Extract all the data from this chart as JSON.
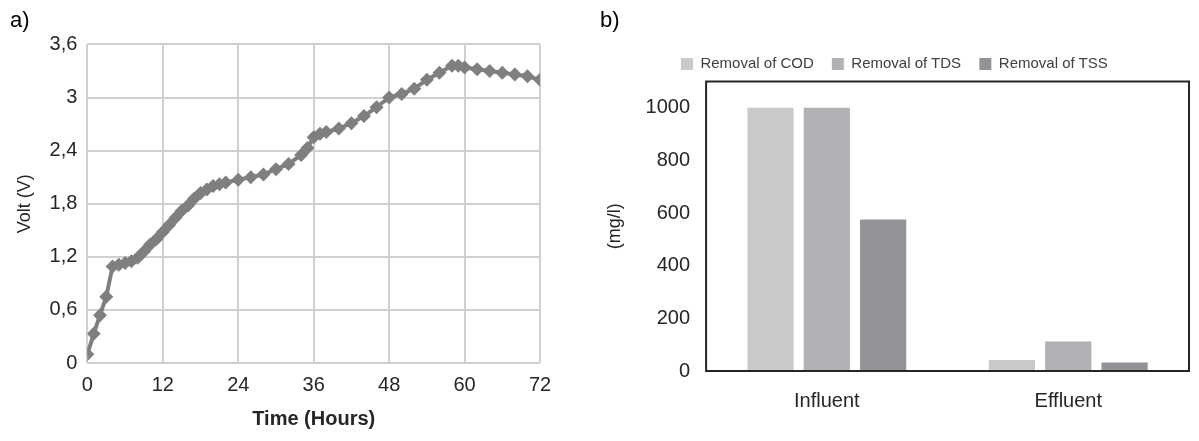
{
  "chart_data": [
    {
      "type": "line",
      "title": "a)",
      "xlabel": "Time (Hours)",
      "ylabel": "Volt (V)",
      "grid": true,
      "legend": false,
      "marker": "diamond",
      "line_style": "solid",
      "xlim": [
        0,
        72
      ],
      "xticks": [
        0,
        12,
        24,
        36,
        48,
        60,
        72
      ],
      "ylim": [
        0,
        3.6
      ],
      "yticks": [
        0,
        {
          "value": 0.6,
          "label": "0,6"
        },
        {
          "value": 1.2,
          "label": "1,2"
        },
        {
          "value": 1.8,
          "label": "1,8"
        },
        {
          "value": 2.4,
          "label": "2,4"
        },
        3,
        {
          "value": 3.6,
          "label": "3,6"
        }
      ],
      "series": [
        {
          "color": "#7f7f7f",
          "x": [
            0,
            1,
            2,
            3,
            4,
            5,
            6,
            7,
            8,
            9,
            10,
            11,
            12,
            13,
            14,
            15,
            16,
            17,
            18,
            19,
            20,
            21,
            22,
            24,
            26,
            28,
            30,
            32,
            34,
            35,
            36,
            37,
            38,
            40,
            42,
            44,
            46,
            48,
            50,
            52,
            54,
            56,
            58,
            59,
            60,
            62,
            64,
            66,
            68,
            70,
            72
          ],
          "values": [
            0.1,
            0.33,
            0.54,
            0.75,
            1.09,
            1.11,
            1.13,
            1.15,
            1.19,
            1.26,
            1.34,
            1.4,
            1.48,
            1.56,
            1.64,
            1.72,
            1.78,
            1.86,
            1.92,
            1.96,
            2.0,
            2.02,
            2.04,
            2.07,
            2.1,
            2.13,
            2.19,
            2.25,
            2.35,
            2.43,
            2.55,
            2.59,
            2.61,
            2.65,
            2.71,
            2.79,
            2.89,
            3.0,
            3.04,
            3.1,
            3.2,
            3.28,
            3.36,
            3.36,
            3.34,
            3.32,
            3.3,
            3.28,
            3.26,
            3.24,
            3.2
          ]
        }
      ]
    },
    {
      "type": "bar",
      "title": "b)",
      "ylabel": "(mg/l)",
      "legend": "top",
      "grid": false,
      "categories": [
        "Influent",
        "Effluent"
      ],
      "ylim": [
        0,
        1100
      ],
      "yticks": [
        0,
        200,
        400,
        600,
        800,
        1000
      ],
      "series": [
        {
          "name": "Removal of COD",
          "color": "#c8c9cb",
          "values": [
            1000,
            42
          ]
        },
        {
          "name": "Removal of TDS",
          "color": "#b0b1b4",
          "values": [
            1000,
            112
          ]
        },
        {
          "name": "Removal of TSS",
          "color": "#929396",
          "values": [
            575,
            32
          ]
        }
      ]
    }
  ]
}
